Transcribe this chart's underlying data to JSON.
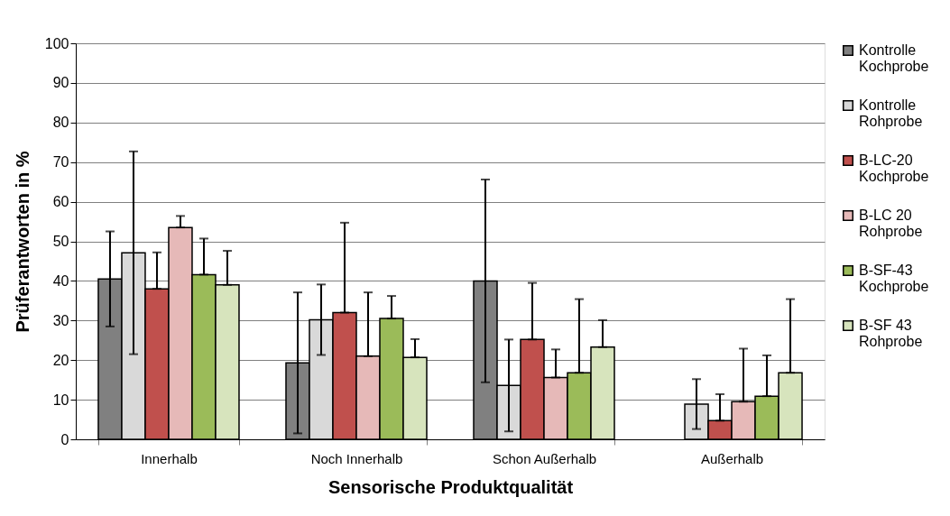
{
  "chart_data": {
    "type": "bar",
    "xlabel": "Sensorische Produktqualität",
    "ylabel": "Prüferantworten in %",
    "categories": [
      "Innerhalb",
      "Noch Innerhalb",
      "Schon Außerhalb",
      "Außerhalb"
    ],
    "ylim": [
      0,
      100
    ],
    "yticks": [
      0,
      10,
      20,
      30,
      40,
      50,
      60,
      70,
      80,
      90,
      100
    ],
    "grid": "y",
    "legend": "right",
    "series": [
      {
        "name": "Kontrolle Kochprobe",
        "color": "#808080",
        "values": [
          40.5,
          19.3,
          40.0,
          null
        ],
        "errors": [
          12.0,
          17.8,
          25.6,
          null
        ]
      },
      {
        "name": "Kontrolle Rohprobe",
        "color": "#d9d9d9",
        "values": [
          47.1,
          30.2,
          13.6,
          8.9
        ],
        "errors": [
          25.6,
          8.9,
          11.6,
          6.3
        ]
      },
      {
        "name": "B-LC-20 Kochprobe",
        "color": "#c0504d",
        "values": [
          38.0,
          32.0,
          25.2,
          4.7
        ],
        "errors": [
          [
            38.0,
            47.2
          ],
          [
            32.0,
            54.7
          ],
          [
            25.2,
            39.5
          ],
          [
            4.7,
            11.4
          ]
        ]
      },
      {
        "name": "B-LC 20 Rohprobe",
        "color": "#e6b9b8",
        "values": [
          53.5,
          21.0,
          15.6,
          9.5
        ],
        "errors": [
          [
            53.5,
            56.4
          ],
          [
            21.0,
            37.1
          ],
          [
            15.6,
            22.7
          ],
          [
            9.5,
            22.9
          ]
        ]
      },
      {
        "name": "B-SF-43 Kochprobe",
        "color": "#9bbb59",
        "values": [
          41.6,
          30.5,
          16.8,
          10.9
        ],
        "errors": [
          [
            41.6,
            50.7
          ],
          [
            30.5,
            36.2
          ],
          [
            16.8,
            35.4
          ],
          [
            10.9,
            21.2
          ]
        ]
      },
      {
        "name": "B-SF 43 Rohprobe",
        "color": "#d7e4bd",
        "values": [
          39.0,
          20.7,
          23.3,
          16.8
        ],
        "errors": [
          [
            39.0,
            47.6
          ],
          [
            20.7,
            25.3
          ],
          [
            23.3,
            30.1
          ],
          [
            16.8,
            35.4
          ]
        ]
      }
    ]
  }
}
